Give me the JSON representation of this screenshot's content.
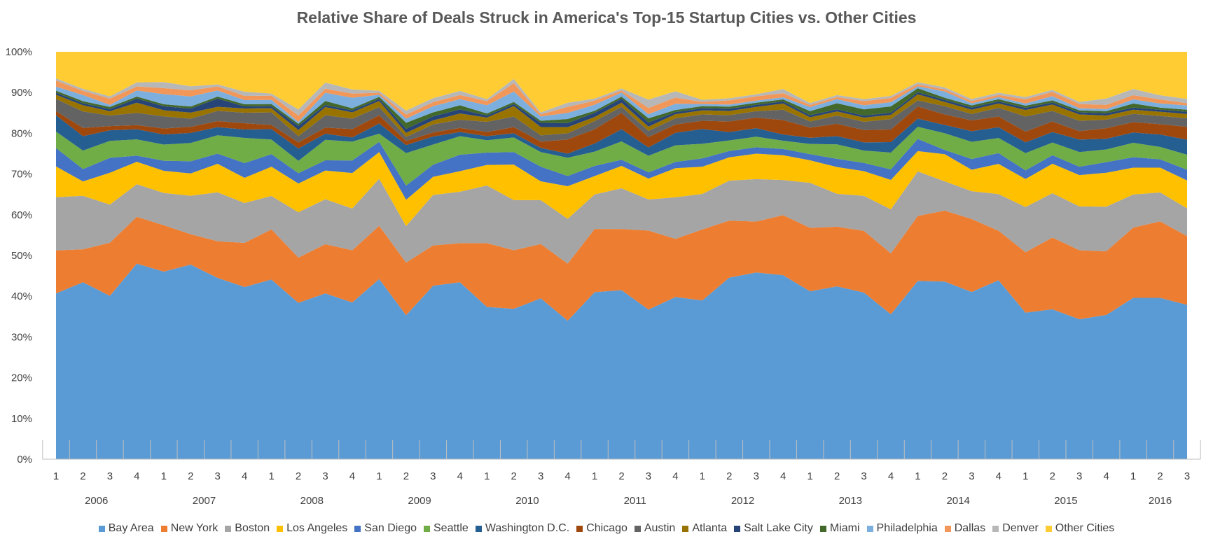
{
  "chart_data": {
    "type": "area",
    "stacked": "percent",
    "title": "Relative Share of Deals Struck in America's Top-15 Startup Cities vs. Other Cities",
    "xlabel": "",
    "ylabel": "",
    "ylim": [
      0,
      100
    ],
    "yticks": [
      "0%",
      "10%",
      "20%",
      "30%",
      "40%",
      "50%",
      "60%",
      "70%",
      "80%",
      "90%",
      "100%"
    ],
    "grid": false,
    "legend_position": "bottom",
    "years": [
      "2006",
      "2007",
      "2008",
      "2009",
      "2010",
      "2011",
      "2012",
      "2013",
      "2014",
      "2015",
      "2016"
    ],
    "quarters_per_year": [
      4,
      4,
      4,
      4,
      4,
      4,
      4,
      4,
      4,
      4,
      3
    ],
    "x": [
      "1",
      "2",
      "3",
      "4",
      "1",
      "2",
      "3",
      "4",
      "1",
      "2",
      "3",
      "4",
      "1",
      "2",
      "3",
      "4",
      "1",
      "2",
      "3",
      "4",
      "1",
      "2",
      "3",
      "4",
      "1",
      "2",
      "3",
      "4",
      "1",
      "2",
      "3",
      "4",
      "1",
      "2",
      "3",
      "4",
      "1",
      "2",
      "3",
      "4",
      "1",
      "2",
      "3"
    ],
    "series": [
      {
        "name": "Bay Area",
        "color": "#5B9BD5",
        "values": [
          40.5,
          43,
          38.5,
          48,
          46.5,
          48,
          44.5,
          41,
          43,
          38,
          40.5,
          37.5,
          44,
          35.5,
          43,
          43,
          37,
          36,
          38.5,
          34,
          41,
          41.5,
          36,
          39,
          38,
          43,
          44,
          44.5,
          41,
          42,
          40.5,
          34.5,
          44,
          42.5,
          39,
          41.5,
          34,
          35.5,
          33.5,
          34,
          39,
          39,
          36
        ]
      },
      {
        "name": "New York",
        "color": "#ED7D31",
        "values": [
          10.5,
          8,
          12.5,
          11.5,
          11.5,
          7.5,
          9,
          10.5,
          12,
          11,
          12,
          12.5,
          13,
          13,
          10,
          9.5,
          15.5,
          14,
          13,
          14,
          15.5,
          15,
          19,
          14,
          17,
          13.5,
          12,
          14.5,
          15.5,
          14.5,
          15,
          14.5,
          16,
          17,
          17,
          11.5,
          14,
          17,
          16.5,
          15,
          17,
          18.5,
          16
        ]
      },
      {
        "name": "Boston",
        "color": "#A5A5A5",
        "values": [
          13,
          13,
          9,
          8,
          8,
          9.5,
          12,
          9.5,
          8,
          11,
          11,
          10,
          11.5,
          9,
          12.5,
          12.5,
          14,
          12,
          10.5,
          11,
          8.5,
          10,
          7.5,
          10,
          8.5,
          9.5,
          10,
          8.5,
          11,
          8,
          8.5,
          10.5,
          11,
          7,
          6.5,
          8.5,
          10.5,
          10.5,
          10.5,
          10.5,
          8,
          7,
          6.5
        ]
      },
      {
        "name": "Los Angeles",
        "color": "#FFC000",
        "values": [
          7.5,
          3.5,
          7.5,
          5.5,
          5.5,
          5.5,
          7,
          6,
          7,
          7,
          7,
          8.5,
          6.5,
          6.5,
          4.5,
          5,
          5,
          8.5,
          4.5,
          8,
          4.5,
          5.5,
          5,
          7,
          6.5,
          5.5,
          6,
          6,
          5.5,
          6.5,
          6,
          7,
          5,
          6.5,
          5,
          7,
          6.5,
          7,
          7.5,
          8,
          6.5,
          6,
          6.5
        ]
      },
      {
        "name": "San Diego",
        "color": "#4472C4",
        "values": [
          4.5,
          3,
          3.5,
          1.5,
          2.5,
          3,
          2.5,
          3.5,
          3,
          2.5,
          2.5,
          3,
          2.5,
          3.5,
          3,
          4,
          3,
          3,
          3.5,
          2.5,
          2.5,
          1.5,
          1.5,
          1.5,
          2,
          1.5,
          1.5,
          1.5,
          1.5,
          2,
          2,
          2.5,
          3,
          1,
          2.5,
          2.5,
          2,
          2,
          2,
          2.5,
          2.5,
          2,
          2.5
        ]
      },
      {
        "name": "Seattle",
        "color": "#70AD47",
        "values": [
          4,
          4.5,
          4,
          4,
          4,
          4.5,
          4.5,
          6,
          3.5,
          3,
          5,
          4.5,
          2,
          8,
          5,
          4.5,
          3,
          3.5,
          3.5,
          4.5,
          3.5,
          4.5,
          4,
          4,
          3.5,
          2.5,
          2.5,
          2,
          2.5,
          3.5,
          3,
          4,
          3,
          4,
          4,
          3.5,
          4,
          3,
          3.5,
          3,
          3.5,
          3,
          3.5
        ]
      },
      {
        "name": "Washington D.C.",
        "color": "#255E91",
        "values": [
          4,
          3.5,
          2.5,
          2.5,
          2.5,
          2.5,
          2,
          2,
          2.5,
          3,
          1.5,
          1,
          2.5,
          2,
          2,
          1,
          1,
          1,
          1,
          1,
          2,
          3,
          2,
          3,
          3.5,
          2,
          2,
          1.5,
          1.5,
          2,
          2,
          2.5,
          2,
          2,
          2.5,
          2.5,
          2.5,
          2.5,
          3,
          2.5,
          2.5,
          3,
          3.5
        ]
      },
      {
        "name": "Chicago",
        "color": "#9E480E",
        "values": [
          1,
          2,
          1,
          1,
          1.5,
          1.5,
          1.5,
          1.5,
          1,
          1.5,
          1.5,
          2,
          2,
          1,
          1,
          1,
          1,
          1.5,
          1.5,
          3.5,
          3.5,
          4,
          2.5,
          2,
          2,
          2.5,
          2.5,
          3.5,
          2.5,
          3,
          3,
          3,
          3,
          2.5,
          2.5,
          2.5,
          2.5,
          2.5,
          2,
          2.5,
          2.5,
          2.5,
          3
        ]
      },
      {
        "name": "Austin",
        "color": "#636363",
        "values": [
          3,
          4,
          2.5,
          3,
          3,
          2,
          2.5,
          2.5,
          3,
          1.5,
          3,
          2.5,
          2,
          1,
          2,
          2,
          2.5,
          2.5,
          1.5,
          1.5,
          2,
          1.5,
          1.5,
          1.5,
          1.5,
          1.5,
          1.5,
          2.5,
          1.5,
          2,
          2,
          2.5,
          1.5,
          2,
          1.5,
          2,
          3.5,
          2.5,
          2.5,
          2,
          2,
          2,
          2
        ]
      },
      {
        "name": "Atlanta",
        "color": "#997300",
        "values": [
          1,
          1.5,
          1,
          2.5,
          1.5,
          1.5,
          1,
          1,
          1,
          1.5,
          2,
          1.5,
          1.5,
          1,
          1,
          1.5,
          1,
          2.5,
          2,
          1.5,
          1,
          1,
          1,
          1,
          1,
          1,
          1,
          1.5,
          1,
          1,
          1,
          1,
          1.5,
          1,
          1,
          1,
          1.5,
          1.5,
          1.5,
          1,
          1,
          1,
          1
        ]
      },
      {
        "name": "Salt Lake City",
        "color": "#264478",
        "values": [
          0.5,
          0.5,
          0.5,
          1,
          1,
          1,
          2,
          0.5,
          0.5,
          1,
          0.5,
          0.5,
          0.5,
          1,
          1,
          1,
          0.5,
          0.5,
          1,
          1,
          1,
          1,
          1,
          0.5,
          0.5,
          0.5,
          0.5,
          0.5,
          0.5,
          0.5,
          0.5,
          0.5,
          0.5,
          0.5,
          0.5,
          0.5,
          0.5,
          0.5,
          0.5,
          0.5,
          0.5,
          0.5,
          0.5
        ]
      },
      {
        "name": "Miami",
        "color": "#43682B",
        "values": [
          0.5,
          0.5,
          0.5,
          0.5,
          0.5,
          0.5,
          0.5,
          0.5,
          0.5,
          0.5,
          1,
          0.5,
          0.5,
          1.5,
          1,
          1,
          0.5,
          0.5,
          0.5,
          1,
          0.5,
          0.5,
          1,
          0.5,
          0.5,
          0.5,
          0.5,
          0.5,
          1,
          1.5,
          1.5,
          1.5,
          1,
          0.5,
          0.5,
          0.5,
          0.5,
          0.5,
          0.5,
          0.5,
          1,
          0.5,
          0.5
        ]
      },
      {
        "name": "Philadelphia",
        "color": "#7CAFDD",
        "values": [
          1,
          1.5,
          0.5,
          1.5,
          2.5,
          2.5,
          1.5,
          1,
          1,
          0.5,
          2,
          2.5,
          0.5,
          1,
          1.5,
          1.5,
          2,
          2.5,
          1,
          1.5,
          1.5,
          1,
          1,
          1.5,
          0.5,
          0.5,
          0.5,
          0.5,
          1,
          1,
          1,
          1,
          0.5,
          1.5,
          0.5,
          0.5,
          0.5,
          1,
          0.5,
          0.5,
          1,
          1,
          1
        ]
      },
      {
        "name": "Dallas",
        "color": "#F1975A",
        "values": [
          1.5,
          1,
          1.5,
          1,
          1.5,
          1.5,
          1,
          1,
          1,
          1.5,
          1,
          1,
          0.5,
          1,
          1,
          1,
          1,
          2,
          0.5,
          1.5,
          1,
          0.5,
          1.5,
          1.5,
          0.5,
          1,
          1,
          1,
          0.5,
          0.5,
          1,
          1,
          0.5,
          0.5,
          0.5,
          0.5,
          1,
          1,
          1,
          1,
          1,
          1,
          0.5
        ]
      },
      {
        "name": "Denver",
        "color": "#B7B7B7",
        "values": [
          0.5,
          0.5,
          0.5,
          1,
          1.5,
          1,
          0.5,
          1,
          0.5,
          1.5,
          1.5,
          1,
          0.5,
          1,
          1,
          1,
          0.5,
          1,
          0.5,
          1,
          0.5,
          0.5,
          2,
          1.5,
          0.5,
          0.5,
          0.5,
          1,
          0.5,
          0.5,
          0.5,
          0.5,
          0.5,
          0.5,
          0.5,
          0.5,
          0.5,
          0.5,
          0.5,
          1.5,
          1.5,
          1,
          1
        ]
      },
      {
        "name": "Other Cities",
        "color": "#FFCD33",
        "values": [
          6.5,
          9,
          10.5,
          7.5,
          7.5,
          8.5,
          8,
          9.5,
          10,
          14,
          7.5,
          9,
          9.5,
          14.5,
          11.5,
          9.5,
          11.5,
          6.5,
          14.5,
          12.5,
          11.5,
          9,
          11.5,
          9.5,
          11.5,
          11,
          10,
          9,
          12.5,
          10.5,
          11.5,
          10.5,
          7.5,
          8.5,
          11,
          9.5,
          10.5,
          9,
          12,
          11,
          9,
          10.5,
          11
        ]
      }
    ]
  }
}
